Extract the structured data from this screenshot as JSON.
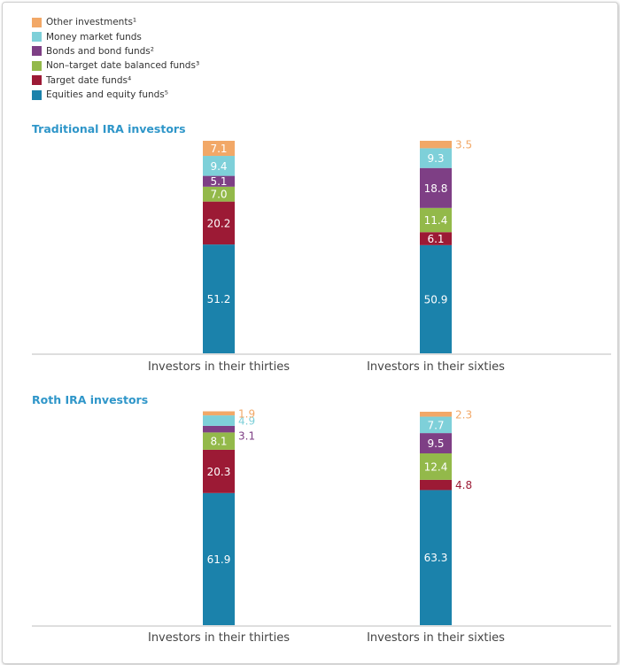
{
  "chart_data": [
    {
      "type": "bar",
      "stacked": true,
      "title": "Traditional IRA investors",
      "categories": [
        "Investors in their thirties",
        "Investors in their sixties"
      ],
      "series": [
        {
          "name": "Equities and equity funds⁵",
          "color": "#1b82ab",
          "values": [
            51.2,
            50.9
          ]
        },
        {
          "name": "Target date funds⁴",
          "color": "#9c1a35",
          "values": [
            20.2,
            6.1
          ]
        },
        {
          "name": "Non-target date balanced funds³",
          "color": "#93b94a",
          "values": [
            7.0,
            11.4
          ]
        },
        {
          "name": "Bonds and bond funds²",
          "color": "#7e3f85",
          "values": [
            5.1,
            18.8
          ]
        },
        {
          "name": "Money market funds",
          "color": "#7ed0d9",
          "values": [
            9.4,
            9.3
          ]
        },
        {
          "name": "Other investments¹",
          "color": "#f2a867",
          "values": [
            7.1,
            3.5
          ]
        }
      ],
      "value_labels": [
        [
          "51.2",
          "20.2",
          "7.0",
          "5.1",
          "9.4",
          "7.1"
        ],
        [
          "50.9",
          "6.1",
          "11.4",
          "18.8",
          "9.3",
          "3.5"
        ]
      ],
      "ylim": [
        0,
        100
      ],
      "grid": false
    },
    {
      "type": "bar",
      "stacked": true,
      "title": "Roth IRA investors",
      "categories": [
        "Investors in their thirties",
        "Investors in their sixties"
      ],
      "series": [
        {
          "name": "Equities and equity funds⁵",
          "color": "#1b82ab",
          "values": [
            61.9,
            63.3
          ]
        },
        {
          "name": "Target date funds⁴",
          "color": "#9c1a35",
          "values": [
            20.3,
            4.8
          ]
        },
        {
          "name": "Non-target date balanced funds³",
          "color": "#93b94a",
          "values": [
            8.1,
            12.4
          ]
        },
        {
          "name": "Bonds and bond funds²",
          "color": "#7e3f85",
          "values": [
            3.1,
            9.5
          ]
        },
        {
          "name": "Money market funds",
          "color": "#7ed0d9",
          "values": [
            4.9,
            7.7
          ]
        },
        {
          "name": "Other investments¹",
          "color": "#f2a867",
          "values": [
            1.9,
            2.3
          ]
        }
      ],
      "value_labels": [
        [
          "61.9",
          "20.3",
          "8.1",
          "3.1",
          "4.9",
          "1.9"
        ],
        [
          "63.3",
          "4.8",
          "12.4",
          "9.5",
          "7.7",
          "2.3"
        ]
      ],
      "ylim": [
        0,
        100
      ],
      "grid": false
    }
  ],
  "legend": {
    "placement": "top-left",
    "items": [
      {
        "label": "Other investments¹",
        "color": "#f2a867"
      },
      {
        "label": "Money market funds",
        "color": "#7ed0d9"
      },
      {
        "label": "Bonds and bond funds²",
        "color": "#7e3f85"
      },
      {
        "label": "Non–target date balanced funds³",
        "color": "#93b94a"
      },
      {
        "label": "Target date funds⁴",
        "color": "#9c1a35"
      },
      {
        "label": "Equities and equity funds⁵",
        "color": "#1b82ab"
      }
    ]
  }
}
